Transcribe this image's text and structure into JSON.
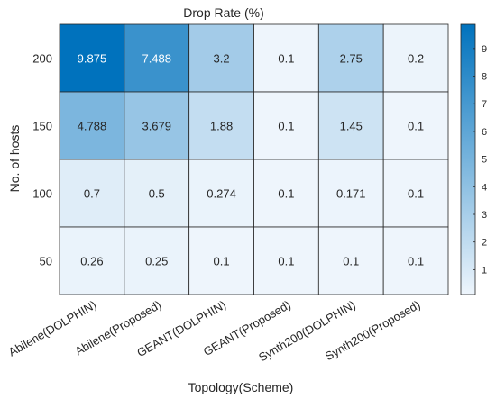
{
  "chart_data": {
    "type": "heatmap",
    "title": "Drop Rate (%)",
    "xlabel": "Topology(Scheme)",
    "ylabel": "No. of hosts",
    "x_categories": [
      "Abilene(DOLPHIN)",
      "Abilene(Proposed)",
      "GEANT(DOLPHIN)",
      "GEANT(Proposed)",
      "Synth200(DOLPHIN)",
      "Synth200(Proposed)"
    ],
    "y_categories": [
      "200",
      "150",
      "100",
      "50"
    ],
    "values": [
      [
        9.875,
        7.488,
        3.2,
        0.1,
        2.75,
        0.2
      ],
      [
        4.788,
        3.679,
        1.88,
        0.1,
        1.45,
        0.1
      ],
      [
        0.7,
        0.5,
        0.274,
        0.1,
        0.171,
        0.1
      ],
      [
        0.26,
        0.25,
        0.1,
        0.1,
        0.1,
        0.1
      ]
    ],
    "value_labels": [
      [
        "9.875",
        "7.488",
        "3.2",
        "0.1",
        "2.75",
        "0.2"
      ],
      [
        "4.788",
        "3.679",
        "1.88",
        "0.1",
        "1.45",
        "0.1"
      ],
      [
        "0.7",
        "0.5",
        "0.274",
        "0.1",
        "0.171",
        "0.1"
      ],
      [
        "0.26",
        "0.25",
        "0.1",
        "0.1",
        "0.1",
        "0.1"
      ]
    ],
    "colorbar": {
      "range": [
        0.1,
        9.875
      ],
      "ticks": [
        1,
        2,
        3,
        4,
        5,
        6,
        7,
        8,
        9
      ],
      "colormap": [
        "#eef5fc",
        "#0072bd"
      ]
    },
    "grid": true
  }
}
